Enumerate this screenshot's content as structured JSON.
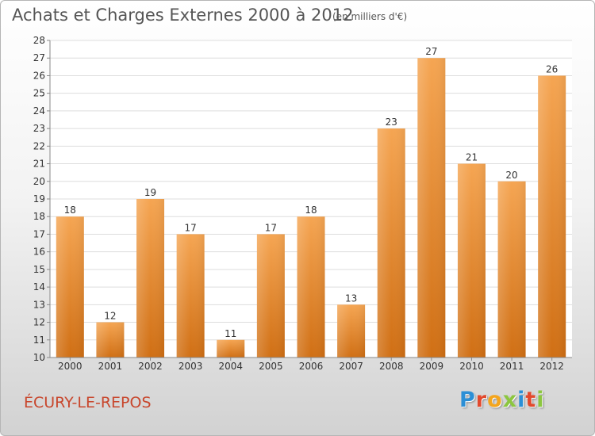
{
  "header": {
    "title": "Achats et Charges Externes 2000 à 2012",
    "unit_note": "(en milliers d'€)"
  },
  "footer": {
    "location": "ÉCURY-LE-REPOS",
    "logo_letters": [
      "P",
      "r",
      "o",
      "x",
      "i",
      "t",
      "i"
    ],
    "logo_colors": [
      "#2b8fd6",
      "#e2492d",
      "#f4a51c",
      "#8cc63f",
      "#2b8fd6",
      "#e2492d",
      "#8cc63f"
    ]
  },
  "colors": {
    "bar_top": "#f5a552",
    "bar_bottom": "#d06f14",
    "axis": "#888888",
    "grid": "#dddddd",
    "text": "#333333"
  },
  "chart_data": {
    "type": "bar",
    "title": "Achats et Charges Externes 2000 à 2012",
    "categories": [
      "2000",
      "2001",
      "2002",
      "2003",
      "2004",
      "2005",
      "2006",
      "2007",
      "2008",
      "2009",
      "2010",
      "2011",
      "2012"
    ],
    "values": [
      18,
      12,
      19,
      17,
      11,
      17,
      18,
      13,
      23,
      27,
      21,
      20,
      26
    ],
    "ylim": [
      10,
      28
    ],
    "yticks": [
      10,
      11,
      12,
      13,
      14,
      15,
      16,
      17,
      18,
      19,
      20,
      21,
      22,
      23,
      24,
      25,
      26,
      27,
      28
    ],
    "grid": true,
    "xlabel": "",
    "ylabel": ""
  }
}
